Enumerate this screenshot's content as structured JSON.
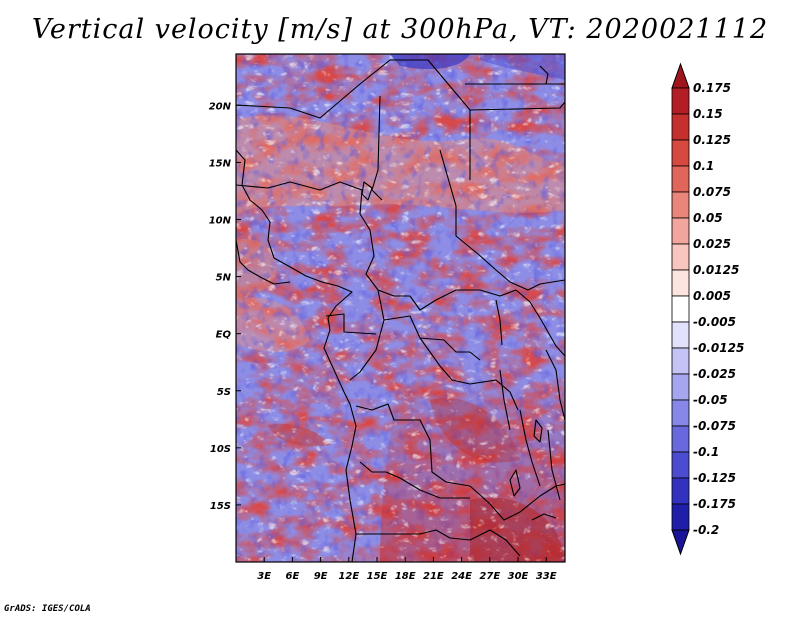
{
  "title": "Vertical velocity [m/s] at 300hPa, VT: 2020021112",
  "credit": "GrADS: IGES/COLA",
  "map": {
    "lon_range": [
      0,
      35
    ],
    "lat_range": [
      -20,
      24.5
    ],
    "lon_ticks": [
      {
        "value": 3,
        "label": "3E"
      },
      {
        "value": 6,
        "label": "6E"
      },
      {
        "value": 9,
        "label": "9E"
      },
      {
        "value": 12,
        "label": "12E"
      },
      {
        "value": 15,
        "label": "15E"
      },
      {
        "value": 18,
        "label": "18E"
      },
      {
        "value": 21,
        "label": "21E"
      },
      {
        "value": 24,
        "label": "24E"
      },
      {
        "value": 27,
        "label": "27E"
      },
      {
        "value": 30,
        "label": "30E"
      },
      {
        "value": 33,
        "label": "33E"
      }
    ],
    "lat_ticks": [
      {
        "value": 20,
        "label": "20N"
      },
      {
        "value": 15,
        "label": "15N"
      },
      {
        "value": 10,
        "label": "10N"
      },
      {
        "value": 5,
        "label": "5N"
      },
      {
        "value": 0,
        "label": "EQ"
      },
      {
        "value": -5,
        "label": "5S"
      },
      {
        "value": -10,
        "label": "10S"
      },
      {
        "value": -15,
        "label": "15S"
      }
    ]
  },
  "colorbar": {
    "entries": [
      {
        "label": "0.175",
        "color": "#a0141e"
      },
      {
        "label": "0.15",
        "color": "#b31e26"
      },
      {
        "label": "0.125",
        "color": "#c5302f"
      },
      {
        "label": "0.1",
        "color": "#d6493f"
      },
      {
        "label": "0.075",
        "color": "#e0655a"
      },
      {
        "label": "0.05",
        "color": "#ea8579"
      },
      {
        "label": "0.025",
        "color": "#f2a59c"
      },
      {
        "label": "0.0125",
        "color": "#f8c6bf"
      },
      {
        "label": "0.005",
        "color": "#fce4e0"
      },
      {
        "label": "-0.005",
        "color": "#ffffff"
      },
      {
        "label": "-0.0125",
        "color": "#e1e1fb"
      },
      {
        "label": "-0.025",
        "color": "#c3c3f6"
      },
      {
        "label": "-0.05",
        "color": "#a5a5f0"
      },
      {
        "label": "-0.075",
        "color": "#8787e8"
      },
      {
        "label": "-0.1",
        "color": "#6969dd"
      },
      {
        "label": "-0.125",
        "color": "#4c4cd0"
      },
      {
        "label": "-0.175",
        "color": "#3232be"
      },
      {
        "label": "-0.2",
        "color": "#1e1ea8"
      }
    ],
    "bottom_color": "#1a1496",
    "top_color": "#a0141e"
  }
}
